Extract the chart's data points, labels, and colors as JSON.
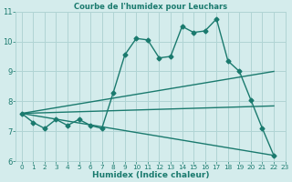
{
  "title": "Courbe de l'humidex pour Leuchars",
  "xlabel": "Humidex (Indice chaleur)",
  "bg_color": "#d4ecec",
  "grid_color": "#b0d4d4",
  "line_color": "#1a7a6e",
  "xlim": [
    -0.5,
    23
  ],
  "ylim": [
    6,
    11
  ],
  "yticks": [
    6,
    7,
    8,
    9,
    10,
    11
  ],
  "xticks": [
    0,
    1,
    2,
    3,
    4,
    5,
    6,
    7,
    8,
    9,
    10,
    11,
    12,
    13,
    14,
    15,
    16,
    17,
    18,
    19,
    20,
    21,
    22,
    23
  ],
  "curve1_x": [
    0,
    1,
    2,
    3,
    4,
    5,
    6,
    7,
    8,
    9,
    10,
    11,
    12,
    13,
    14,
    15,
    16,
    17,
    18,
    19,
    20,
    21,
    22
  ],
  "curve1_y": [
    7.6,
    7.3,
    7.1,
    7.4,
    7.2,
    7.4,
    7.2,
    7.1,
    8.3,
    9.55,
    10.1,
    10.05,
    9.45,
    9.5,
    10.5,
    10.3,
    10.35,
    10.75,
    9.35,
    9.0,
    8.05,
    7.1,
    6.2
  ],
  "line2_x": [
    0,
    22
  ],
  "line2_y": [
    7.6,
    9.0
  ],
  "line3_x": [
    0,
    22
  ],
  "line3_y": [
    7.6,
    6.2
  ],
  "line4_x": [
    0,
    22
  ],
  "line4_y": [
    7.6,
    7.85
  ],
  "font_color": "#1a7a6e",
  "title_fontsize": 6.0,
  "xlabel_fontsize": 6.5,
  "tick_fontsize_x": 5.2,
  "tick_fontsize_y": 6.0,
  "marker": "D",
  "markersize": 2.5,
  "linewidth": 1.0
}
